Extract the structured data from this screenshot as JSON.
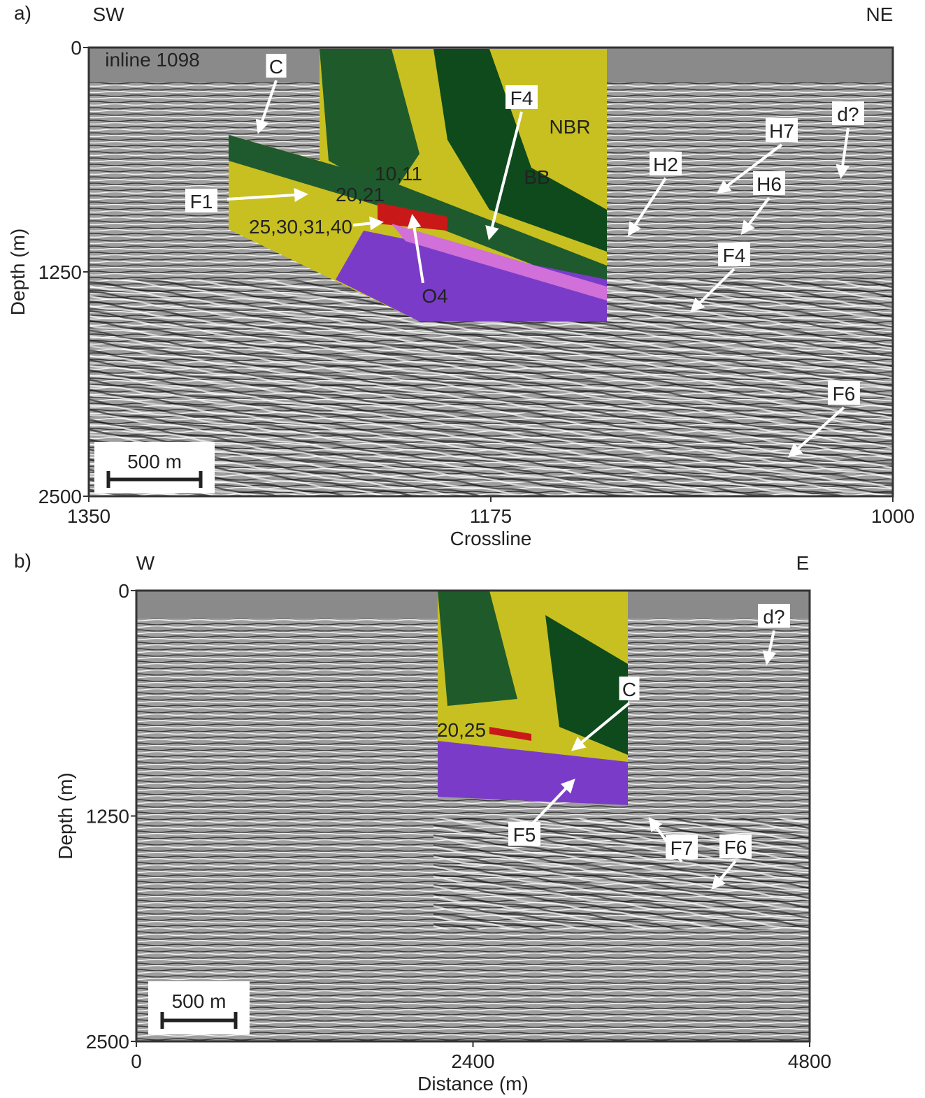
{
  "panels": [
    {
      "label": "a)",
      "left_dir": "SW",
      "right_dir": "NE",
      "inline": "inline 1098",
      "scale_bar": "500 m",
      "x_label": "Crossline",
      "y_label": "Depth (m)",
      "xlim": [
        1350,
        1000
      ],
      "xticks": [
        1350,
        1175,
        1000
      ],
      "ylim": [
        0,
        2500
      ],
      "yticks": [
        0,
        1250,
        2500
      ],
      "annotations": [
        "C",
        "F4",
        "NBR",
        "BB",
        "10,11",
        "20,21",
        "F1",
        "25,30,31,40",
        "O4",
        "H2",
        "H7",
        "d?",
        "H6",
        "F4",
        "F6"
      ]
    },
    {
      "label": "b)",
      "left_dir": "W",
      "right_dir": "E",
      "scale_bar": "500 m",
      "x_label": "Distance (m)",
      "y_label": "Depth (m)",
      "xlim": [
        0,
        4800
      ],
      "xticks": [
        0,
        2400,
        4800
      ],
      "ylim": [
        0,
        2500
      ],
      "yticks": [
        0,
        1250,
        2500
      ],
      "annotations": [
        "d?",
        "C",
        "20,25",
        "F5",
        "F7",
        "F6"
      ]
    }
  ]
}
